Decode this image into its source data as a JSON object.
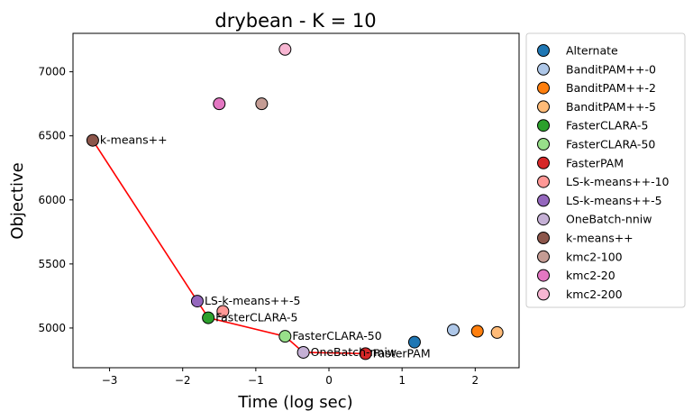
{
  "chart_data": {
    "type": "scatter",
    "title": "drybean - K = 10",
    "xlabel": "Time (log sec)",
    "ylabel": "Objective",
    "xlim": [
      -3.5,
      2.6
    ],
    "ylim": [
      4690,
      7300
    ],
    "xticks": [
      -3,
      -2,
      -1,
      0,
      1,
      2
    ],
    "yticks": [
      5000,
      5500,
      6000,
      6500,
      7000
    ],
    "legend_location": "outside-right",
    "series": [
      {
        "name": "Alternate",
        "color": "#1f77b4",
        "x": [
          1.17
        ],
        "y": [
          4890
        ]
      },
      {
        "name": "BanditPAM++-0",
        "color": "#aec7e8",
        "x": [
          1.7
        ],
        "y": [
          4985
        ]
      },
      {
        "name": "BanditPAM++-2",
        "color": "#ff7f0e",
        "x": [
          2.03
        ],
        "y": [
          4975
        ]
      },
      {
        "name": "BanditPAM++-5",
        "color": "#ffbb78",
        "x": [
          2.3
        ],
        "y": [
          4965
        ]
      },
      {
        "name": "FasterCLARA-5",
        "color": "#2ca02c",
        "x": [
          -1.65
        ],
        "y": [
          5080
        ]
      },
      {
        "name": "FasterCLARA-50",
        "color": "#98df8a",
        "x": [
          -0.6
        ],
        "y": [
          4935
        ]
      },
      {
        "name": "FasterPAM",
        "color": "#d62728",
        "x": [
          0.5
        ],
        "y": [
          4800
        ]
      },
      {
        "name": "LS-k-means++-10",
        "color": "#ff9896",
        "x": [
          -1.45
        ],
        "y": [
          5130
        ]
      },
      {
        "name": "LS-k-means++-5",
        "color": "#9467bd",
        "x": [
          -1.8
        ],
        "y": [
          5210
        ]
      },
      {
        "name": "OneBatch-nniw",
        "color": "#c5b0d5",
        "x": [
          -0.35
        ],
        "y": [
          4810
        ]
      },
      {
        "name": "k-means++",
        "color": "#8c564b",
        "x": [
          -3.23
        ],
        "y": [
          6465
        ]
      },
      {
        "name": "kmc2-100",
        "color": "#c49c94",
        "x": [
          -0.92
        ],
        "y": [
          6750
        ]
      },
      {
        "name": "kmc2-20",
        "color": "#e377c2",
        "x": [
          -1.5
        ],
        "y": [
          6750
        ]
      },
      {
        "name": "kmc2-200",
        "color": "#f7b6d2",
        "x": [
          -0.6
        ],
        "y": [
          7175
        ]
      }
    ],
    "pareto_line": {
      "color": "#ff0000",
      "x": [
        -3.23,
        -1.8,
        -1.65,
        -0.6,
        -0.35,
        0.5
      ],
      "y": [
        6465,
        5210,
        5080,
        4935,
        4810,
        4800
      ]
    },
    "annotations": [
      {
        "text": "k-means++",
        "x": -3.23,
        "y": 6465
      },
      {
        "text": "LS-k-means++-5",
        "x": -1.8,
        "y": 5210
      },
      {
        "text": "FasterCLARA-5",
        "x": -1.65,
        "y": 5080
      },
      {
        "text": "FasterCLARA-50",
        "x": -0.6,
        "y": 4935
      },
      {
        "text": "OneBatch-nniw",
        "x": -0.35,
        "y": 4810
      },
      {
        "text": "FasterPAM",
        "x": 0.5,
        "y": 4800
      }
    ]
  }
}
